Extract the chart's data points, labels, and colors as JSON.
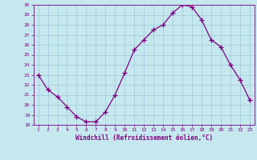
{
  "x": [
    1,
    2,
    3,
    4,
    5,
    6,
    7,
    8,
    9,
    10,
    11,
    12,
    13,
    14,
    15,
    16,
    17,
    18,
    19,
    20,
    21,
    22,
    23
  ],
  "y": [
    23.0,
    21.5,
    20.8,
    19.8,
    18.8,
    18.3,
    18.3,
    19.3,
    21.0,
    23.2,
    25.5,
    26.5,
    27.5,
    28.0,
    29.2,
    30.0,
    29.8,
    28.5,
    26.5,
    25.8,
    24.0,
    22.5,
    20.5
  ],
  "line_color": "#800080",
  "marker": "+",
  "marker_color": "#800080",
  "bg_color": "#c5e8ef",
  "grid_color": "#a0c8d8",
  "axis_color": "#800080",
  "tick_color": "#800080",
  "xlabel": "Windchill (Refroidissement éolien,°C)",
  "xlabel_color": "#800080",
  "ylim": [
    18,
    30
  ],
  "yticks": [
    18,
    19,
    20,
    21,
    22,
    23,
    24,
    25,
    26,
    27,
    28,
    29,
    30
  ],
  "xticks": [
    1,
    2,
    3,
    4,
    5,
    6,
    7,
    8,
    9,
    10,
    11,
    12,
    13,
    14,
    15,
    16,
    17,
    18,
    19,
    20,
    21,
    22,
    23
  ]
}
